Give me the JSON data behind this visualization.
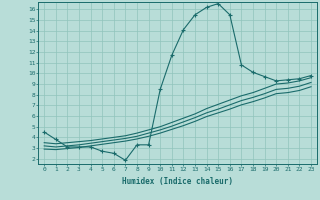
{
  "title": "",
  "xlabel": "Humidex (Indice chaleur)",
  "bg_color": "#b8ddd8",
  "line_color": "#1a6b6b",
  "grid_color": "#90c4bc",
  "xlim": [
    -0.5,
    23.5
  ],
  "ylim": [
    1.5,
    16.7
  ],
  "xticks": [
    0,
    1,
    2,
    3,
    4,
    5,
    6,
    7,
    8,
    9,
    10,
    11,
    12,
    13,
    14,
    15,
    16,
    17,
    18,
    19,
    20,
    21,
    22,
    23
  ],
  "yticks": [
    2,
    3,
    4,
    5,
    6,
    7,
    8,
    9,
    10,
    11,
    12,
    13,
    14,
    15,
    16
  ],
  "line1_x": [
    0,
    1,
    2,
    3,
    4,
    5,
    6,
    7,
    8,
    9,
    10,
    11,
    12,
    13,
    14,
    15,
    16,
    17,
    18,
    19,
    20,
    21,
    22,
    23
  ],
  "line1_y": [
    4.5,
    3.8,
    3.1,
    3.1,
    3.1,
    2.7,
    2.5,
    1.85,
    3.3,
    3.3,
    8.5,
    11.7,
    14.1,
    15.5,
    16.2,
    16.55,
    15.5,
    10.8,
    10.1,
    9.7,
    9.3,
    9.4,
    9.5,
    9.8
  ],
  "line2_x": [
    0,
    1,
    2,
    3,
    4,
    5,
    6,
    7,
    8,
    9,
    10,
    11,
    12,
    13,
    14,
    15,
    16,
    17,
    18,
    19,
    20,
    21,
    22,
    23
  ],
  "line2_y": [
    3.5,
    3.4,
    3.5,
    3.6,
    3.7,
    3.85,
    4.0,
    4.15,
    4.4,
    4.7,
    5.0,
    5.4,
    5.8,
    6.2,
    6.7,
    7.1,
    7.5,
    7.9,
    8.2,
    8.6,
    9.0,
    9.1,
    9.3,
    9.6
  ],
  "line3_x": [
    0,
    1,
    2,
    3,
    4,
    5,
    6,
    7,
    8,
    9,
    10,
    11,
    12,
    13,
    14,
    15,
    16,
    17,
    18,
    19,
    20,
    21,
    22,
    23
  ],
  "line3_y": [
    3.2,
    3.1,
    3.2,
    3.3,
    3.45,
    3.6,
    3.75,
    3.9,
    4.1,
    4.4,
    4.7,
    5.05,
    5.45,
    5.85,
    6.3,
    6.65,
    7.05,
    7.45,
    7.75,
    8.1,
    8.5,
    8.6,
    8.8,
    9.15
  ],
  "line4_x": [
    0,
    1,
    2,
    3,
    4,
    5,
    6,
    7,
    8,
    9,
    10,
    11,
    12,
    13,
    14,
    15,
    16,
    17,
    18,
    19,
    20,
    21,
    22,
    23
  ],
  "line4_y": [
    2.9,
    2.85,
    2.95,
    3.05,
    3.2,
    3.35,
    3.5,
    3.65,
    3.85,
    4.1,
    4.4,
    4.75,
    5.1,
    5.5,
    5.95,
    6.3,
    6.65,
    7.05,
    7.35,
    7.7,
    8.1,
    8.2,
    8.4,
    8.75
  ]
}
